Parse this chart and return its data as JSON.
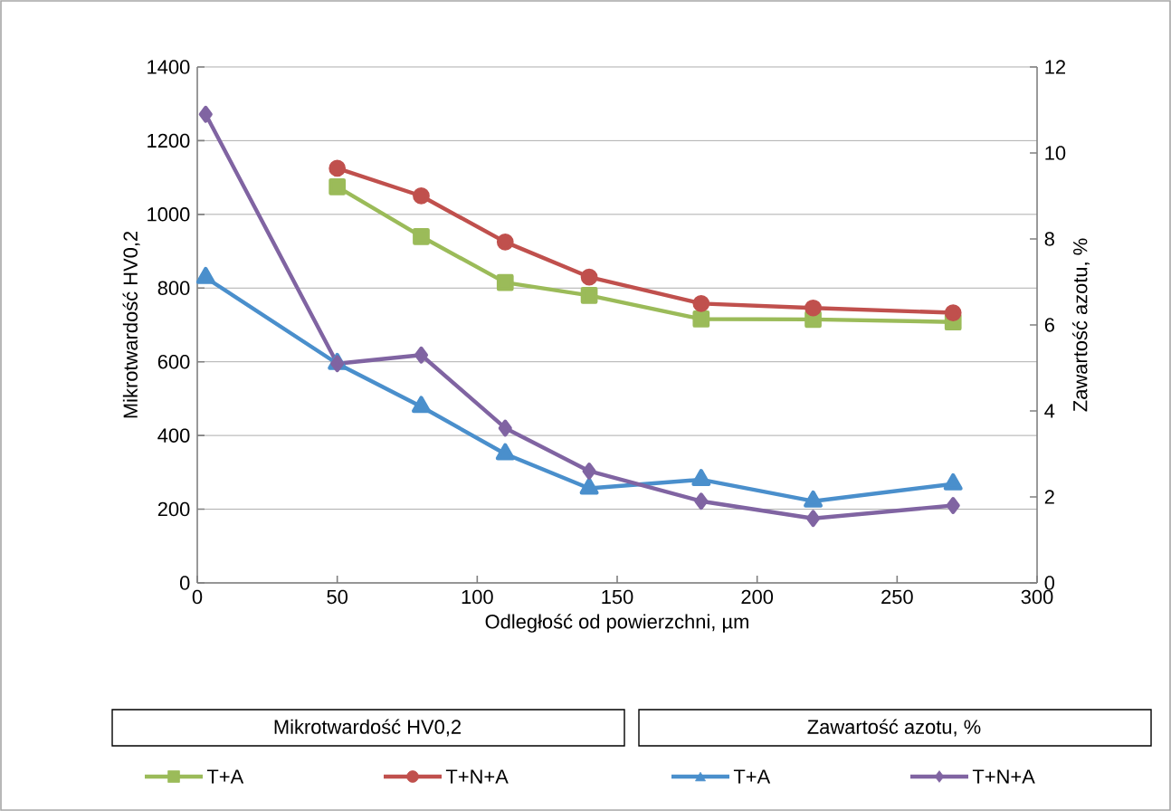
{
  "chart_data": {
    "type": "line",
    "xlabel": "Odległość od powierzchni, µm",
    "ylabel": "Mikrotwardość HV0,2",
    "y2label": "Zawartość azotu, %",
    "xlim": [
      0,
      300
    ],
    "xticks": [
      0,
      50,
      100,
      150,
      200,
      250,
      300
    ],
    "ylim": [
      0,
      1400
    ],
    "yticks": [
      0,
      200,
      400,
      600,
      800,
      1000,
      1200,
      1400
    ],
    "y2lim": [
      0,
      12
    ],
    "y2ticks": [
      0,
      2,
      4,
      6,
      8,
      10,
      12
    ],
    "grid": "y",
    "legend": "bottom",
    "line_style": "solid",
    "annotations": [
      "Mikrotwardość HV0,2",
      "Zawartość azotu, %"
    ],
    "series": [
      {
        "name": "T+A",
        "color": "#9bbb59",
        "marker": "square",
        "x": [
          50,
          80,
          110,
          140,
          180,
          220,
          270
        ],
        "values": [
          1075,
          940,
          815,
          780,
          716,
          715,
          708
        ]
      },
      {
        "name": "T+N+A",
        "color": "#c0504d",
        "marker": "circle",
        "x": [
          50,
          80,
          110,
          140,
          180,
          220,
          270
        ],
        "values": [
          1125,
          1050,
          925,
          830,
          758,
          746,
          733
        ]
      },
      {
        "name": "T+A",
        "color": "#4a8fcc",
        "marker": "triangle",
        "axis": "y2",
        "x": [
          3,
          50,
          80,
          110,
          140,
          180,
          220,
          270
        ],
        "values": [
          7.1,
          5.1,
          4.1,
          3.0,
          2.2,
          2.4,
          1.9,
          2.3
        ]
      },
      {
        "name": "T+N+A",
        "color": "#8064a2",
        "marker": "diamond",
        "axis": "y2",
        "x": [
          3,
          50,
          80,
          110,
          140,
          180,
          220,
          270
        ],
        "values": [
          10.9,
          5.1,
          5.3,
          3.6,
          2.6,
          1.9,
          1.5,
          1.8
        ]
      }
    ]
  }
}
